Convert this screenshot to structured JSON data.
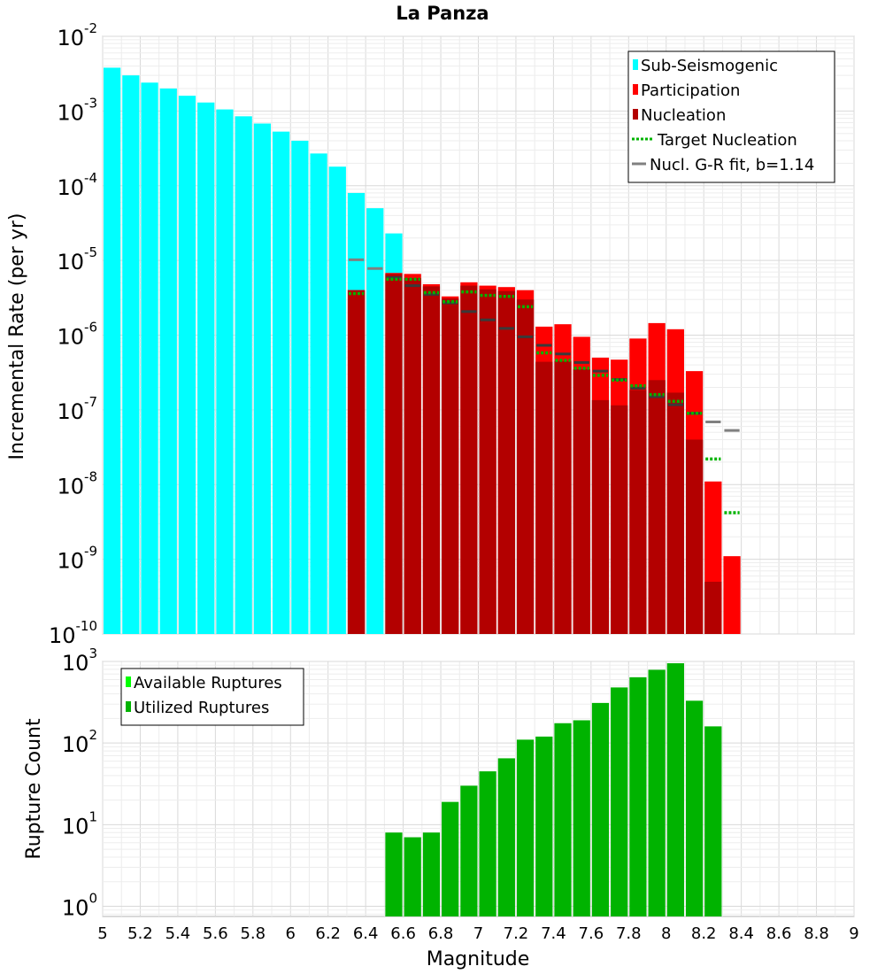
{
  "chart_data": [
    {
      "type": "bar",
      "title": "La Panza",
      "ylabel": "Incremental Rate (per yr)",
      "xlabel": "",
      "yscale": "log",
      "ylim": [
        1e-10,
        0.01
      ],
      "xlim": [
        5,
        9
      ],
      "grid": true,
      "legend_position": "top-right",
      "y_tick_labels": [
        {
          "value": 1e-10,
          "base": "10",
          "exp": "-10"
        },
        {
          "value": 1e-09,
          "base": "10",
          "exp": "-9"
        },
        {
          "value": 1e-08,
          "base": "10",
          "exp": "-8"
        },
        {
          "value": 1e-07,
          "base": "10",
          "exp": "-7"
        },
        {
          "value": 1e-06,
          "base": "10",
          "exp": "-6"
        },
        {
          "value": 1e-05,
          "base": "10",
          "exp": "-5"
        },
        {
          "value": 0.0001,
          "base": "10",
          "exp": "-4"
        },
        {
          "value": 0.001,
          "base": "10",
          "exp": "-3"
        },
        {
          "value": 0.01,
          "base": "10",
          "exp": "-2"
        }
      ],
      "legend": [
        {
          "label": "Sub-Seismogenic",
          "kind": "bar",
          "color": "#00ffff"
        },
        {
          "label": "Participation",
          "kind": "bar",
          "color": "#ff0000"
        },
        {
          "label": "Nucleation",
          "kind": "bar",
          "color": "#b30000"
        },
        {
          "label": "Target Nucleation",
          "kind": "dotted",
          "color": "#00b300"
        },
        {
          "label": "Nucl. G-R fit, b=1.14",
          "kind": "line",
          "color": "#808080"
        }
      ],
      "series": [
        {
          "name": "Sub-Seismogenic",
          "color": "#00ffff",
          "x": [
            5.05,
            5.15,
            5.25,
            5.35,
            5.45,
            5.55,
            5.65,
            5.75,
            5.85,
            5.95,
            6.05,
            6.15,
            6.25,
            6.35,
            6.45,
            6.55
          ],
          "values": [
            0.0038,
            0.003,
            0.0024,
            0.002,
            0.0016,
            0.0013,
            0.00105,
            0.00085,
            0.00068,
            0.00053,
            0.0004,
            0.00027,
            0.00018,
            8e-05,
            5e-05,
            2.3e-05
          ]
        },
        {
          "name": "Participation",
          "color": "#ff0000",
          "x": [
            6.35,
            6.55,
            6.65,
            6.75,
            6.85,
            6.95,
            7.05,
            7.15,
            7.25,
            7.35,
            7.45,
            7.55,
            7.65,
            7.75,
            7.85,
            7.95,
            8.05,
            8.15,
            8.25,
            8.35
          ],
          "values": [
            4e-06,
            6.8e-06,
            6.6e-06,
            4.8e-06,
            3.3e-06,
            5.1e-06,
            4.6e-06,
            4.4e-06,
            4e-06,
            1.3e-06,
            1.4e-06,
            9.5e-07,
            5e-07,
            4.7e-07,
            9e-07,
            1.45e-06,
            1.2e-06,
            3.3e-07,
            1.1e-08,
            1.1e-09
          ]
        },
        {
          "name": "Nucleation",
          "color": "#b30000",
          "x": [
            6.35,
            6.55,
            6.65,
            6.75,
            6.85,
            6.95,
            7.05,
            7.15,
            7.25,
            7.35,
            7.45,
            7.55,
            7.65,
            7.75,
            7.85,
            7.95,
            8.05,
            8.15,
            8.25
          ],
          "values": [
            4e-06,
            6.6e-06,
            5.8e-06,
            4.5e-06,
            3.1e-06,
            4.6e-06,
            4.1e-06,
            3.9e-06,
            3e-06,
            4.4e-07,
            4.5e-07,
            3.5e-07,
            1.35e-07,
            1.15e-07,
            1.85e-07,
            2.5e-07,
            1.7e-07,
            4e-08,
            5e-10
          ]
        },
        {
          "name": "Target Nucleation",
          "color": "#00b300",
          "x": [
            6.35,
            6.55,
            6.65,
            6.75,
            6.85,
            6.95,
            7.05,
            7.15,
            7.25,
            7.35,
            7.45,
            7.55,
            7.65,
            7.75,
            7.85,
            7.95,
            8.05,
            8.15,
            8.25,
            8.35
          ],
          "values": [
            3.6e-06,
            5.6e-06,
            5.6e-06,
            3.7e-06,
            2.8e-06,
            3.8e-06,
            3.4e-06,
            3.3e-06,
            2.4e-06,
            5.8e-07,
            4.6e-07,
            3.6e-07,
            2.9e-07,
            2.5e-07,
            2.1e-07,
            1.6e-07,
            1.3e-07,
            9e-08,
            2.2e-08,
            4.2e-09
          ]
        },
        {
          "name": "Nucl. G-R fit, b=1.14",
          "color": "#808080",
          "x": [
            6.35,
            6.45,
            6.55,
            6.65,
            6.75,
            6.85,
            6.95,
            7.05,
            7.15,
            7.25,
            7.35,
            7.45,
            7.55,
            7.65,
            7.75,
            7.85,
            7.95,
            8.05,
            8.15,
            8.25,
            8.35
          ],
          "values": [
            1.02e-05,
            7.8e-06,
            5.9e-06,
            4.6e-06,
            3.5e-06,
            2.7e-06,
            2.07e-06,
            1.6e-06,
            1.23e-06,
            9.5e-07,
            7.3e-07,
            5.6e-07,
            4.3e-07,
            3.3e-07,
            2.55e-07,
            1.95e-07,
            1.5e-07,
            1.17e-07,
            9e-08,
            6.9e-08,
            5.3e-08
          ]
        }
      ]
    },
    {
      "type": "bar",
      "title": "",
      "ylabel": "Rupture Count",
      "xlabel": "Magnitude",
      "yscale": "log",
      "ylim": [
        0.75,
        1000
      ],
      "xlim": [
        5,
        9
      ],
      "grid": true,
      "legend_position": "top-left",
      "y_tick_labels": [
        {
          "value": 1,
          "base": "10",
          "exp": "0"
        },
        {
          "value": 10,
          "base": "10",
          "exp": "1"
        },
        {
          "value": 100,
          "base": "10",
          "exp": "2"
        },
        {
          "value": 1000,
          "base": "10",
          "exp": "3"
        }
      ],
      "x_tick_labels": [
        "5",
        "5.2",
        "5.4",
        "5.6",
        "5.8",
        "6",
        "6.2",
        "6.4",
        "6.6",
        "6.8",
        "7",
        "7.2",
        "7.4",
        "7.6",
        "7.8",
        "8",
        "8.2",
        "8.4",
        "8.6",
        "8.8",
        "9"
      ],
      "x_tick_values": [
        5,
        5.2,
        5.4,
        5.6,
        5.8,
        6,
        6.2,
        6.4,
        6.6,
        6.8,
        7,
        7.2,
        7.4,
        7.6,
        7.8,
        8,
        8.2,
        8.4,
        8.6,
        8.8,
        9
      ],
      "legend": [
        {
          "label": "Available Ruptures",
          "kind": "bar",
          "color": "#00ff00"
        },
        {
          "label": "Utilized Ruptures",
          "kind": "bar",
          "color": "#00b300"
        }
      ],
      "series": [
        {
          "name": "Utilized Ruptures",
          "color": "#00b300",
          "x": [
            6.55,
            6.65,
            6.75,
            6.85,
            6.95,
            7.05,
            7.15,
            7.25,
            7.35,
            7.45,
            7.55,
            7.65,
            7.75,
            7.85,
            7.95,
            8.05,
            8.15,
            8.25
          ],
          "values": [
            8,
            7,
            8,
            19,
            30,
            45,
            65,
            110,
            120,
            175,
            190,
            310,
            480,
            640,
            790,
            950,
            330,
            160
          ]
        }
      ]
    }
  ]
}
